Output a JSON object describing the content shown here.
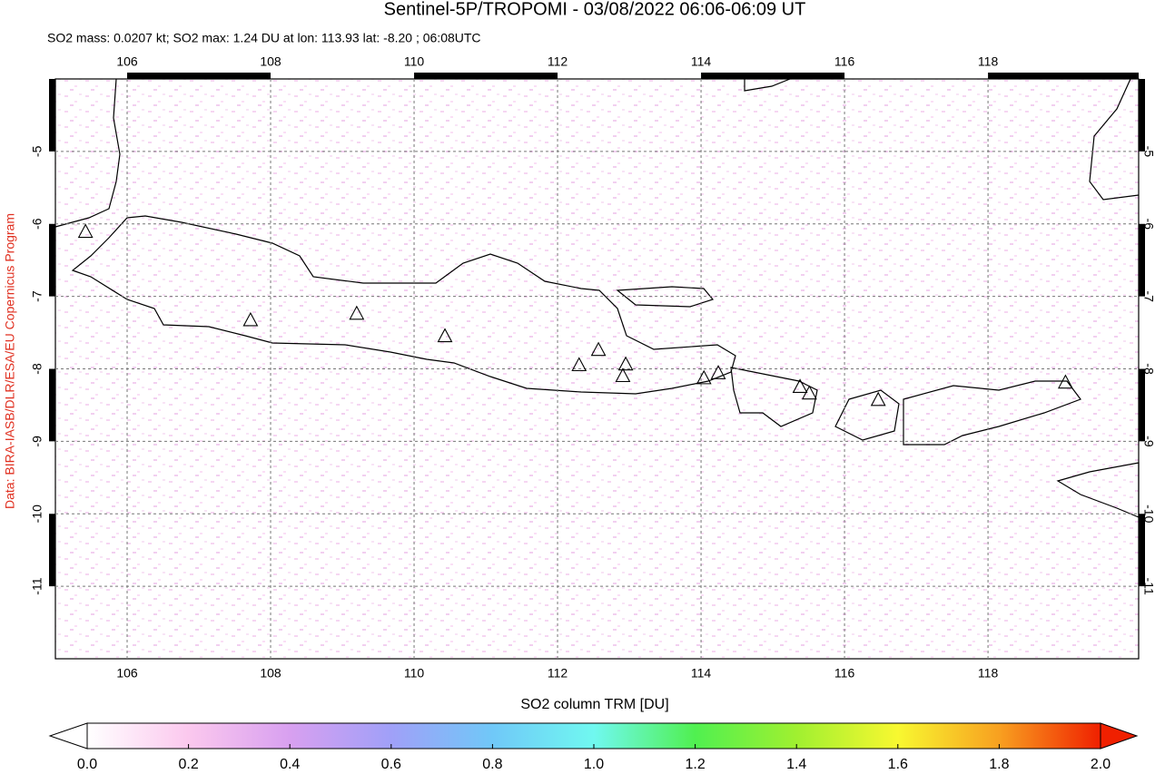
{
  "chart_data": {
    "type": "map",
    "title": "Sentinel-5P/TROPOMI - 03/08/2022 06:06-06:09 UT",
    "subtitle": "SO2 mass: 0.0207 kt; SO2 max: 1.24 DU at lon: 113.93 lat: -8.20 ; 06:08UTC",
    "source": "Data: BIRA-IASB/DLR/ESA/EU Copernicus Program",
    "xlim": [
      105,
      120.1
    ],
    "ylim": [
      -12,
      -4
    ],
    "xticks": [
      106,
      108,
      110,
      112,
      114,
      116,
      118
    ],
    "yticks": [
      -5,
      -6,
      -7,
      -8,
      -9,
      -10,
      -11
    ],
    "grid": true,
    "volcanoes": {
      "x": [
        105.42,
        107.72,
        109.2,
        110.43,
        112.3,
        112.57,
        112.95,
        112.91,
        114.04,
        114.24,
        115.38,
        115.51,
        116.47,
        119.08
      ],
      "y": [
        -6.11,
        -7.33,
        -7.24,
        -7.55,
        -7.95,
        -7.74,
        -7.94,
        -8.1,
        -8.13,
        -8.06,
        -8.25,
        -8.34,
        -8.43,
        -8.19
      ]
    },
    "colorbar": {
      "label": "SO2 column TRM [DU]",
      "lim": [
        0,
        2
      ],
      "colors": [
        "#ffffff",
        "#fbc8ee",
        "#d8a0f0",
        "#a0a0f8",
        "#70c8f8",
        "#70f8f0",
        "#50f050",
        "#a0f030",
        "#f8f830",
        "#f8a020",
        "#f02000"
      ],
      "ticks": [
        {
          "value": 0,
          "label": "0.0"
        },
        {
          "value": 0.2,
          "label": "0.2"
        },
        {
          "value": 0.4,
          "label": "0.4"
        },
        {
          "value": 0.6,
          "label": "0.6"
        },
        {
          "value": 0.8,
          "label": "0.8"
        },
        {
          "value": 1,
          "label": "1.0"
        },
        {
          "value": 1.2,
          "label": "1.2"
        },
        {
          "value": 1.4,
          "label": "1.4"
        },
        {
          "value": 1.6,
          "label": "1.6"
        },
        {
          "value": 1.8,
          "label": "1.8"
        },
        {
          "value": 2,
          "label": "2.0"
        }
      ]
    }
  }
}
